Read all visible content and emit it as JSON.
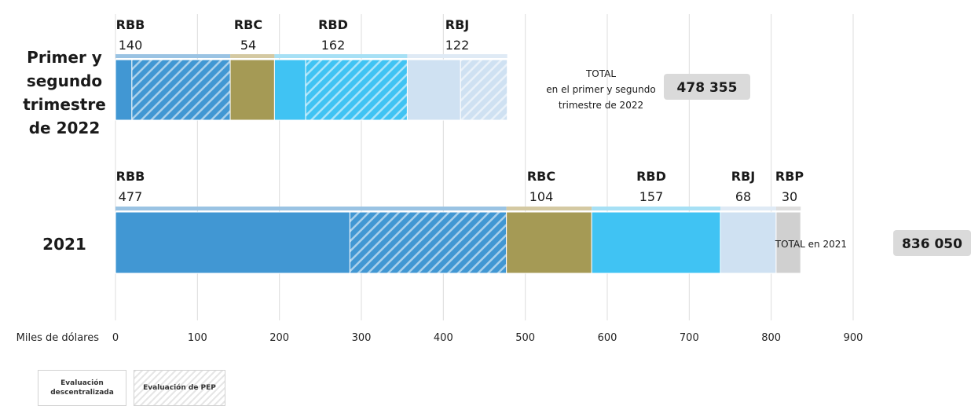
{
  "chart_data": {
    "type": "bar",
    "orientation": "horizontal",
    "stacked": true,
    "xlabel": "Miles de dólares",
    "ylabel": "",
    "xlim": [
      0,
      900
    ],
    "x_ticks": [
      0,
      100,
      200,
      300,
      400,
      500,
      600,
      700,
      800,
      900
    ],
    "grid": true,
    "categories": [
      "Primer y segundo trimestre de 2022",
      "2021"
    ],
    "groups": [
      {
        "category": "Primer y segundo trimestre de 2022",
        "category_lines": [
          "Primer y",
          "segundo",
          "trimestre",
          "de 2022"
        ],
        "total_label_lines": [
          "TOTAL",
          "en el primer y segundo",
          "trimestre de 2022"
        ],
        "total_value": "478 355",
        "segments": [
          {
            "region": "RBB",
            "label": "140",
            "total": 140,
            "evaluacion_descentralizada": 20,
            "evaluacion_pep": 120,
            "color": "#4197d3",
            "header_color": "#9ac3e3"
          },
          {
            "region": "RBC",
            "label": "54",
            "total": 54,
            "evaluacion_descentralizada": 54,
            "evaluacion_pep": 0,
            "color": "#a59a55",
            "header_color": "#d4c9a2"
          },
          {
            "region": "RBD",
            "label": "162",
            "total": 162,
            "evaluacion_descentralizada": 38,
            "evaluacion_pep": 124,
            "color": "#40c3f3",
            "header_color": "#a6e0f5"
          },
          {
            "region": "RBJ",
            "label": "122",
            "total": 122,
            "evaluacion_descentralizada": 65,
            "evaluacion_pep": 57,
            "color": "#cfe1f2",
            "header_color": "#dfeaf5"
          }
        ]
      },
      {
        "category": "2021",
        "category_lines": [
          "2021"
        ],
        "total_label_lines": [
          "TOTAL en 2021"
        ],
        "total_value": "836 050",
        "segments": [
          {
            "region": "RBB",
            "label": "477",
            "total": 477,
            "evaluacion_descentralizada": 286,
            "evaluacion_pep": 191,
            "color": "#4197d3",
            "header_color": "#9ac3e3"
          },
          {
            "region": "RBC",
            "label": "104",
            "total": 104,
            "evaluacion_descentralizada": 104,
            "evaluacion_pep": 0,
            "color": "#a59a55",
            "header_color": "#d4c9a2"
          },
          {
            "region": "RBD",
            "label": "157",
            "total": 157,
            "evaluacion_descentralizada": 157,
            "evaluacion_pep": 0,
            "color": "#40c3f3",
            "header_color": "#a6e0f5"
          },
          {
            "region": "RBJ",
            "label": "68",
            "total": 68,
            "evaluacion_descentralizada": 68,
            "evaluacion_pep": 0,
            "color": "#cfe1f2",
            "header_color": "#dfeaf5"
          },
          {
            "region": "RBP",
            "label": "30",
            "total": 30,
            "evaluacion_descentralizada": 30,
            "evaluacion_pep": 0,
            "color": "#d0d0d0",
            "header_color": "#dedede"
          }
        ]
      }
    ],
    "legend": {
      "placement": "bottom-left",
      "entries": [
        {
          "key": "evaluacion_descentralizada",
          "label_lines": [
            "Evaluación",
            "descentralizada"
          ],
          "pattern": "solid"
        },
        {
          "key": "evaluacion_pep",
          "label": "Evaluación de PEP",
          "pattern": "hatched"
        }
      ]
    }
  }
}
